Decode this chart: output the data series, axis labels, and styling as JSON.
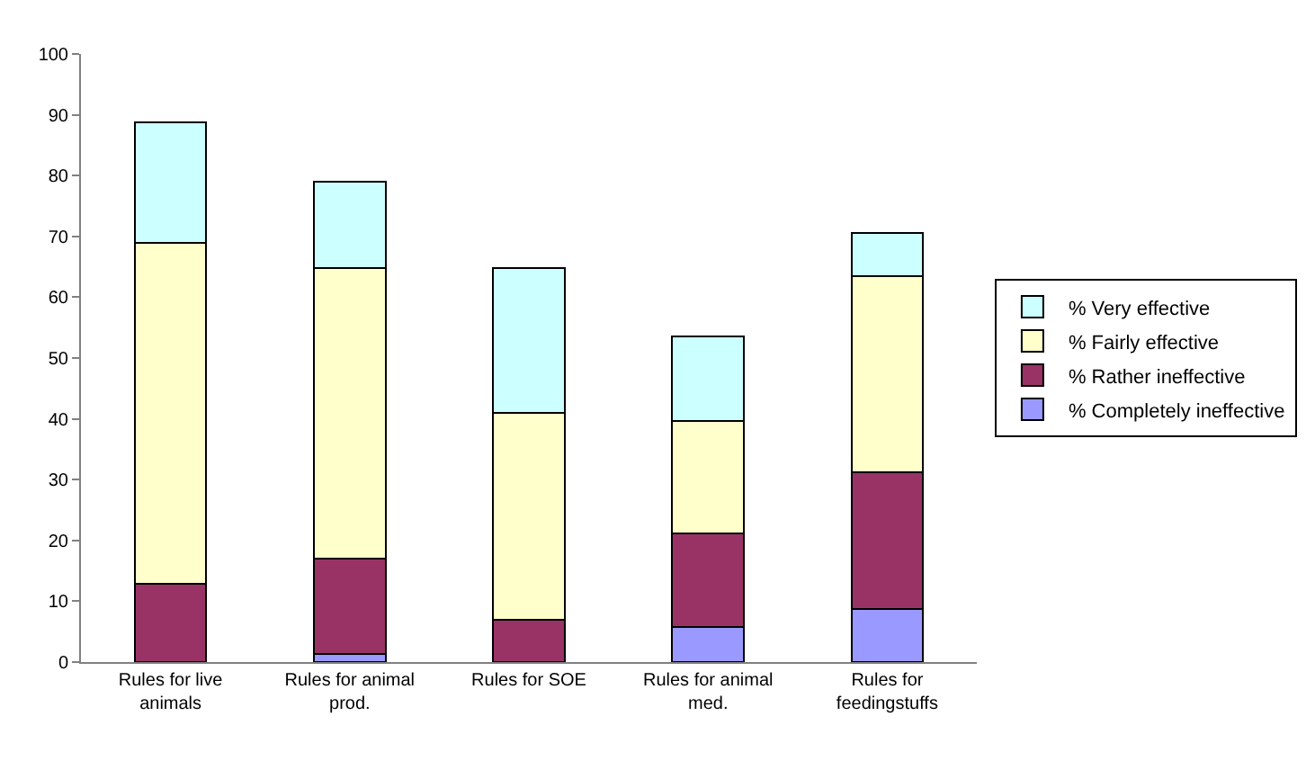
{
  "chart_data": {
    "type": "bar",
    "stacked": true,
    "categories": [
      "Rules for live\nanimals",
      "Rules for animal\nprod.",
      "Rules for SOE",
      "Rules for animal\nmed.",
      "Rules for\nfeedingstuffs"
    ],
    "series": [
      {
        "name": "% Completely ineffective",
        "color": "#9999ff",
        "values": [
          0,
          1.4,
          0,
          5.7,
          8.7
        ]
      },
      {
        "name": "% Rather ineffective",
        "color": "#993366",
        "values": [
          12.8,
          15.6,
          7,
          15.5,
          22.5
        ]
      },
      {
        "name": "% Fairly effective",
        "color": "#ffffcc",
        "values": [
          56.2,
          47.8,
          34,
          18.4,
          32.2
        ]
      },
      {
        "name": "% Very effective",
        "color": "#ccffff",
        "values": [
          19.8,
          14.2,
          23.8,
          14,
          7.2
        ]
      }
    ],
    "ylim": [
      0,
      100
    ],
    "yticks": [
      0,
      10,
      20,
      30,
      40,
      50,
      60,
      70,
      80,
      90,
      100
    ],
    "legend": "right"
  }
}
